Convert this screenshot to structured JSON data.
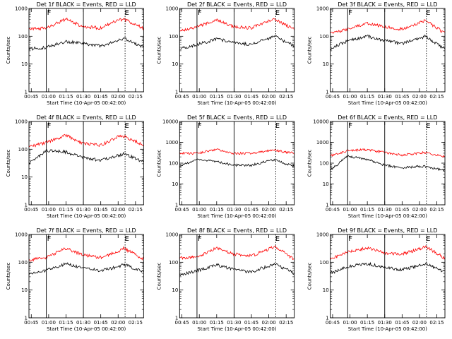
{
  "colors": {
    "events": "#000000",
    "lld": "#ff0000",
    "axes": "#000000",
    "background": "#ffffff"
  },
  "chart_data": [
    {
      "type": "line",
      "title": "Det 1f BLACK = Events, RED = LLD",
      "ylabel": "Counts/sec",
      "xlabel": "Start Time (10-Apr-05 00:42:00)",
      "x_ticks": [
        "00:45",
        "01:00",
        "01:15",
        "01:30",
        "01:45",
        "02:00",
        "02:15"
      ],
      "y_ticks": [
        "1",
        "10",
        "100",
        "1000"
      ],
      "yscale": "log",
      "ylim": [
        1,
        1000
      ],
      "xlim": [
        "00:43",
        "02:22"
      ],
      "solid_lines": [
        "00:58",
        "01:30"
      ],
      "dotted_lines": [
        "02:06"
      ],
      "annotations": [
        {
          "text": "F",
          "x": "00:58"
        },
        {
          "text": "E",
          "x": "02:05"
        }
      ],
      "series": [
        {
          "color": "black",
          "x": [
            "00:43",
            "00:58",
            "01:15",
            "01:30",
            "01:45",
            "02:00",
            "02:05",
            "02:22"
          ],
          "y": [
            35,
            40,
            65,
            55,
            45,
            70,
            85,
            40
          ]
        },
        {
          "color": "red",
          "x": [
            "00:43",
            "00:58",
            "01:15",
            "01:30",
            "01:45",
            "02:00",
            "02:05",
            "02:22"
          ],
          "y": [
            180,
            200,
            420,
            220,
            200,
            380,
            420,
            190
          ]
        }
      ]
    },
    {
      "type": "line",
      "title": "Det 2f BLACK = Events, RED = LLD",
      "ylabel": "Counts/sec",
      "xlabel": "Start Time (10-Apr-05 00:42:00)",
      "x_ticks": [
        "00:45",
        "01:00",
        "01:15",
        "01:30",
        "01:45",
        "02:00",
        "02:15"
      ],
      "y_ticks": [
        "1",
        "10",
        "100",
        "1000"
      ],
      "yscale": "log",
      "ylim": [
        1,
        1000
      ],
      "xlim": [
        "00:43",
        "02:22"
      ],
      "solid_lines": [
        "00:58",
        "01:30"
      ],
      "dotted_lines": [
        "02:06"
      ],
      "annotations": [
        {
          "text": "F",
          "x": "00:58"
        },
        {
          "text": "E",
          "x": "02:05"
        }
      ],
      "series": [
        {
          "color": "black",
          "x": [
            "00:43",
            "00:58",
            "01:15",
            "01:30",
            "01:45",
            "02:00",
            "02:05",
            "02:22"
          ],
          "y": [
            35,
            50,
            80,
            60,
            50,
            85,
            100,
            45
          ]
        },
        {
          "color": "red",
          "x": [
            "00:43",
            "00:58",
            "01:15",
            "01:30",
            "01:45",
            "02:00",
            "02:05",
            "02:22"
          ],
          "y": [
            150,
            220,
            380,
            220,
            200,
            360,
            420,
            180
          ]
        }
      ]
    },
    {
      "type": "line",
      "title": "Det 3f BLACK = Events, RED = LLD",
      "ylabel": "Counts/sec",
      "xlabel": "Start Time (10-Apr-05 00:42:00)",
      "x_ticks": [
        "00:45",
        "01:00",
        "01:15",
        "01:30",
        "01:45",
        "02:00",
        "02:15"
      ],
      "y_ticks": [
        "1",
        "10",
        "100",
        "1000"
      ],
      "yscale": "log",
      "ylim": [
        1,
        1000
      ],
      "xlim": [
        "00:43",
        "02:22"
      ],
      "solid_lines": [
        "00:58",
        "01:30"
      ],
      "dotted_lines": [
        "02:06"
      ],
      "annotations": [
        {
          "text": "F",
          "x": "00:58"
        },
        {
          "text": "E",
          "x": "02:05"
        }
      ],
      "series": [
        {
          "color": "black",
          "x": [
            "00:43",
            "00:58",
            "01:15",
            "01:30",
            "01:45",
            "02:00",
            "02:05",
            "02:22"
          ],
          "y": [
            35,
            70,
            100,
            70,
            55,
            85,
            100,
            35
          ]
        },
        {
          "color": "red",
          "x": [
            "00:43",
            "00:58",
            "01:15",
            "01:30",
            "01:45",
            "02:00",
            "02:05",
            "02:22"
          ],
          "y": [
            130,
            180,
            290,
            220,
            180,
            300,
            380,
            130
          ]
        }
      ]
    },
    {
      "type": "line",
      "title": "Det 4f BLACK = Events, RED = LLD",
      "ylabel": "Counts/sec",
      "xlabel": "Start Time (10-Apr-05 00:42:00)",
      "x_ticks": [
        "00:45",
        "01:00",
        "01:15",
        "01:30",
        "01:45",
        "02:00",
        "02:15"
      ],
      "y_ticks": [
        "1",
        "10",
        "100",
        "1000"
      ],
      "yscale": "log",
      "ylim": [
        1,
        1000
      ],
      "xlim": [
        "00:43",
        "02:22"
      ],
      "solid_lines": [
        "00:58",
        "01:30"
      ],
      "dotted_lines": [
        "02:06"
      ],
      "annotations": [
        {
          "text": "F",
          "x": "00:58"
        },
        {
          "text": "E",
          "x": "02:05"
        }
      ],
      "series": [
        {
          "color": "black",
          "x": [
            "00:43",
            "00:58",
            "01:15",
            "01:30",
            "01:45",
            "02:00",
            "02:05",
            "02:22"
          ],
          "y": [
            30,
            90,
            80,
            50,
            40,
            60,
            70,
            35
          ]
        },
        {
          "color": "red",
          "x": [
            "00:43",
            "00:58",
            "01:15",
            "01:30",
            "01:45",
            "02:00",
            "02:05",
            "02:22"
          ],
          "y": [
            120,
            180,
            320,
            160,
            140,
            280,
            300,
            140
          ]
        }
      ]
    },
    {
      "type": "line",
      "title": "Det 5f BLACK = Events, RED = LLD",
      "ylabel": "Counts/sec",
      "xlabel": "Start Time (10-Apr-05 00:42:00)",
      "x_ticks": [
        "00:45",
        "01:00",
        "01:15",
        "01:30",
        "01:45",
        "02:00",
        "02:15"
      ],
      "y_ticks": [
        "1",
        "10",
        "100",
        "1000",
        "10000"
      ],
      "yscale": "log",
      "ylim": [
        1,
        10000
      ],
      "xlim": [
        "00:43",
        "02:22"
      ],
      "solid_lines": [
        "00:58",
        "01:30"
      ],
      "dotted_lines": [
        "02:06"
      ],
      "annotations": [
        {
          "text": "F",
          "x": "00:58"
        },
        {
          "text": "E",
          "x": "02:05"
        }
      ],
      "series": [
        {
          "color": "black",
          "x": [
            "00:43",
            "00:58",
            "01:15",
            "01:30",
            "01:45",
            "02:00",
            "02:05",
            "02:22"
          ],
          "y": [
            70,
            150,
            120,
            80,
            80,
            130,
            140,
            70
          ]
        },
        {
          "color": "red",
          "x": [
            "00:43",
            "00:58",
            "01:15",
            "01:30",
            "01:45",
            "02:00",
            "02:05",
            "02:22"
          ],
          "y": [
            300,
            300,
            450,
            300,
            300,
            400,
            420,
            300
          ]
        }
      ]
    },
    {
      "type": "line",
      "title": "Det 6f BLACK = Events, RED = LLD",
      "ylabel": "Counts/sec",
      "xlabel": "Start Time (10-Apr-05 00:42:00)",
      "x_ticks": [
        "00:45",
        "01:00",
        "01:15",
        "01:30",
        "01:45",
        "02:00",
        "02:15"
      ],
      "y_ticks": [
        "1",
        "10",
        "100",
        "1000",
        "10000"
      ],
      "yscale": "log",
      "ylim": [
        1,
        10000
      ],
      "xlim": [
        "00:43",
        "02:22"
      ],
      "solid_lines": [
        "00:58",
        "01:30"
      ],
      "dotted_lines": [
        "02:06"
      ],
      "annotations": [
        {
          "text": "F",
          "x": "00:58"
        },
        {
          "text": "E",
          "x": "02:05"
        }
      ],
      "series": [
        {
          "color": "black",
          "x": [
            "00:43",
            "00:58",
            "01:15",
            "01:30",
            "01:45",
            "02:00",
            "02:05",
            "02:22"
          ],
          "y": [
            45,
            220,
            150,
            80,
            60,
            70,
            70,
            45
          ]
        },
        {
          "color": "red",
          "x": [
            "00:43",
            "00:58",
            "01:15",
            "01:30",
            "01:45",
            "02:00",
            "02:05",
            "02:22"
          ],
          "y": [
            220,
            400,
            450,
            320,
            250,
            300,
            330,
            200
          ]
        }
      ]
    },
    {
      "type": "line",
      "title": "Det 7f BLACK = Events, RED = LLD",
      "ylabel": "Counts/sec",
      "xlabel": "Start Time (10-Apr-05 00:42:00)",
      "x_ticks": [
        "00:45",
        "01:00",
        "01:15",
        "01:30",
        "01:45",
        "02:00",
        "02:15"
      ],
      "y_ticks": [
        "1",
        "10",
        "100",
        "1000"
      ],
      "yscale": "log",
      "ylim": [
        1,
        1000
      ],
      "xlim": [
        "00:43",
        "02:22"
      ],
      "solid_lines": [
        "00:58",
        "01:30"
      ],
      "dotted_lines": [
        "02:06"
      ],
      "annotations": [
        {
          "text": "F",
          "x": "00:58"
        },
        {
          "text": "E",
          "x": "02:05"
        }
      ],
      "series": [
        {
          "color": "black",
          "x": [
            "00:43",
            "00:58",
            "01:15",
            "01:30",
            "01:45",
            "02:00",
            "02:05",
            "02:22"
          ],
          "y": [
            40,
            50,
            90,
            60,
            50,
            70,
            85,
            45
          ]
        },
        {
          "color": "red",
          "x": [
            "00:43",
            "00:58",
            "01:15",
            "01:30",
            "01:45",
            "02:00",
            "02:05",
            "02:22"
          ],
          "y": [
            120,
            150,
            320,
            180,
            150,
            240,
            320,
            130
          ]
        }
      ]
    },
    {
      "type": "line",
      "title": "Det 8f BLACK = Events, RED = LLD",
      "ylabel": "Counts/sec",
      "xlabel": "Start Time (10-Apr-05 00:42:00)",
      "x_ticks": [
        "00:45",
        "01:00",
        "01:15",
        "01:30",
        "01:45",
        "02:00",
        "02:15"
      ],
      "y_ticks": [
        "1",
        "10",
        "100",
        "1000"
      ],
      "yscale": "log",
      "ylim": [
        1,
        1000
      ],
      "xlim": [
        "00:43",
        "02:22"
      ],
      "solid_lines": [
        "00:58",
        "01:30"
      ],
      "dotted_lines": [
        "02:06"
      ],
      "annotations": [
        {
          "text": "F",
          "x": "00:58"
        },
        {
          "text": "E",
          "x": "02:05"
        }
      ],
      "series": [
        {
          "color": "black",
          "x": [
            "00:43",
            "00:58",
            "01:15",
            "01:30",
            "01:45",
            "02:00",
            "02:05",
            "02:22"
          ],
          "y": [
            35,
            50,
            80,
            55,
            45,
            75,
            90,
            40
          ]
        },
        {
          "color": "red",
          "x": [
            "00:43",
            "00:58",
            "01:15",
            "01:30",
            "01:45",
            "02:00",
            "02:05",
            "02:22"
          ],
          "y": [
            140,
            150,
            330,
            200,
            170,
            300,
            380,
            130
          ]
        }
      ]
    },
    {
      "type": "line",
      "title": "Det 9f BLACK = Events, RED = LLD",
      "ylabel": "Counts/sec",
      "xlabel": "Start Time (10-Apr-05 00:42:00)",
      "x_ticks": [
        "00:45",
        "01:00",
        "01:15",
        "01:30",
        "01:45",
        "02:00",
        "02:15"
      ],
      "y_ticks": [
        "1",
        "10",
        "100",
        "1000"
      ],
      "yscale": "log",
      "ylim": [
        1,
        1000
      ],
      "xlim": [
        "00:43",
        "02:22"
      ],
      "solid_lines": [
        "00:58",
        "01:30"
      ],
      "dotted_lines": [
        "02:06"
      ],
      "annotations": [
        {
          "text": "F",
          "x": "00:58"
        },
        {
          "text": "E",
          "x": "02:05"
        }
      ],
      "series": [
        {
          "color": "black",
          "x": [
            "00:43",
            "00:58",
            "01:15",
            "01:30",
            "01:45",
            "02:00",
            "02:05",
            "02:22"
          ],
          "y": [
            40,
            70,
            90,
            65,
            55,
            75,
            90,
            45
          ]
        },
        {
          "color": "red",
          "x": [
            "00:43",
            "00:58",
            "01:15",
            "01:30",
            "01:45",
            "02:00",
            "02:05",
            "02:22"
          ],
          "y": [
            130,
            230,
            330,
            220,
            200,
            300,
            380,
            140
          ]
        }
      ]
    }
  ]
}
